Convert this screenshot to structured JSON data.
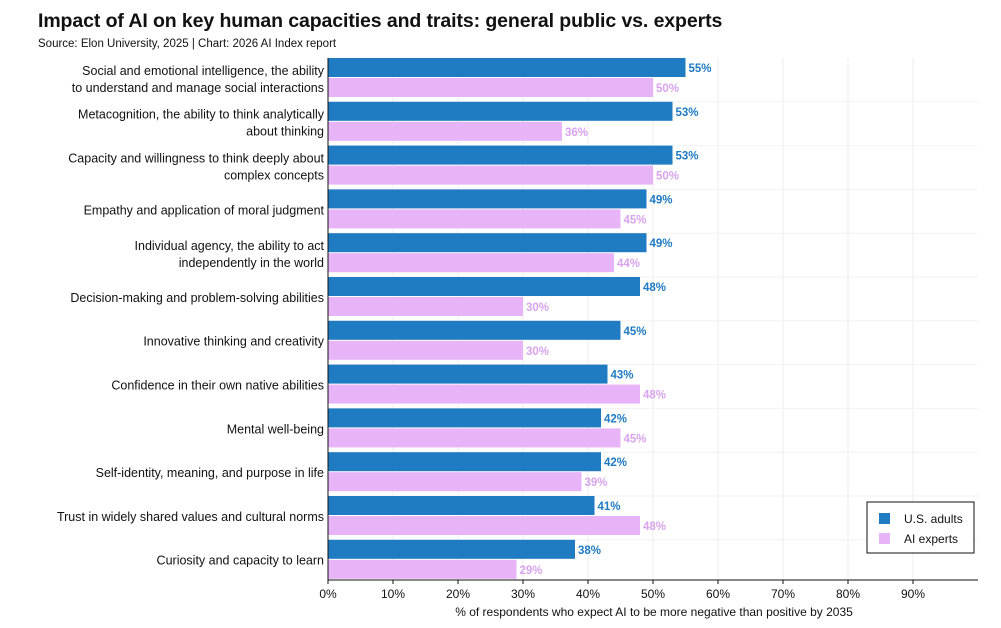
{
  "header": {
    "title": "Impact of AI on key human capacities and traits: general public vs. experts",
    "subtitle": "Source: Elon University, 2025 | Chart: 2026 AI Index report"
  },
  "chart_data": {
    "type": "bar",
    "orientation": "horizontal",
    "categories": [
      [
        "Social and emotional intelligence, the ability",
        "to understand and manage social interactions"
      ],
      [
        "Metacognition, the ability to think analytically",
        "about thinking"
      ],
      [
        "Capacity and willingness to think deeply about",
        "complex concepts"
      ],
      [
        "Empathy and application of moral judgment"
      ],
      [
        "Individual agency, the ability to act",
        "independently in the world"
      ],
      [
        "Decision-making and problem-solving abilities"
      ],
      [
        "Innovative thinking and creativity"
      ],
      [
        "Confidence in their own native abilities"
      ],
      [
        "Mental well-being"
      ],
      [
        "Self-identity, meaning, and purpose in life"
      ],
      [
        "Trust in widely shared values and cultural norms"
      ],
      [
        "Curiosity and capacity to learn"
      ]
    ],
    "series": [
      {
        "name": "U.S. adults",
        "color": "#1f7bc2",
        "label_color": "#1f7bc2",
        "values": [
          55,
          53,
          53,
          49,
          49,
          48,
          45,
          43,
          42,
          42,
          41,
          38
        ]
      },
      {
        "name": "AI experts",
        "color": "#e8b4f8",
        "label_color": "#d9a3ee",
        "values": [
          50,
          36,
          50,
          45,
          44,
          30,
          30,
          48,
          45,
          39,
          48,
          29
        ]
      }
    ],
    "xlabel": "% of respondents who expect AI to be more negative than positive by 2035",
    "xlim": [
      0,
      100
    ],
    "xticks": [
      0,
      10,
      20,
      30,
      40,
      50,
      60,
      70,
      80,
      90
    ],
    "value_suffix": "%",
    "grid": true,
    "legend_position": "bottom-right"
  }
}
